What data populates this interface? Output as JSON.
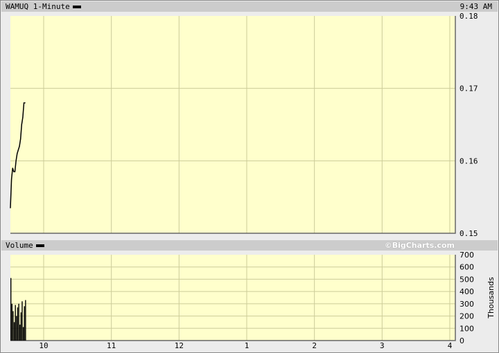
{
  "header": {
    "title": "WAMUQ 1-Minute",
    "time": "9:43 AM"
  },
  "volume_header": {
    "title": "Volume",
    "copyright": "©BigCharts.com"
  },
  "colors": {
    "plot_bg": "#ffffcc",
    "grid": "#cccc99",
    "line": "#000000",
    "panel": "#ececec",
    "bar": "#cccccc"
  },
  "chart_data": [
    {
      "type": "line",
      "title": "WAMUQ 1-Minute",
      "x_ticks": [
        "10",
        "11",
        "12",
        "1",
        "2",
        "3",
        "4"
      ],
      "y_ticks": [
        "0.18",
        "0.17",
        "0.16",
        "0.15"
      ],
      "ylim": [
        0.15,
        0.18
      ],
      "xlim": [
        "9:30",
        "4:00"
      ],
      "grid": true,
      "x": [
        "9:30",
        "9:31",
        "9:32",
        "9:33",
        "9:34",
        "9:35",
        "9:36",
        "9:37",
        "9:38",
        "9:39",
        "9:40",
        "9:41",
        "9:42",
        "9:43"
      ],
      "values": [
        0.1535,
        0.1575,
        0.159,
        0.1585,
        0.1585,
        0.16,
        0.161,
        0.1615,
        0.162,
        0.163,
        0.165,
        0.166,
        0.168,
        0.168
      ]
    },
    {
      "type": "bar",
      "title": "Volume",
      "ylabel": "Thousands",
      "y_ticks": [
        "700",
        "600",
        "500",
        "400",
        "300",
        "200",
        "100",
        "0"
      ],
      "ylim": [
        0,
        700
      ],
      "grid": true,
      "x": [
        "9:30",
        "9:31",
        "9:32",
        "9:33",
        "9:34",
        "9:35",
        "9:36",
        "9:37",
        "9:38",
        "9:39",
        "9:40",
        "9:41",
        "9:42",
        "9:43"
      ],
      "values": [
        510,
        300,
        240,
        150,
        290,
        200,
        270,
        300,
        130,
        230,
        320,
        110,
        280,
        330
      ]
    }
  ]
}
